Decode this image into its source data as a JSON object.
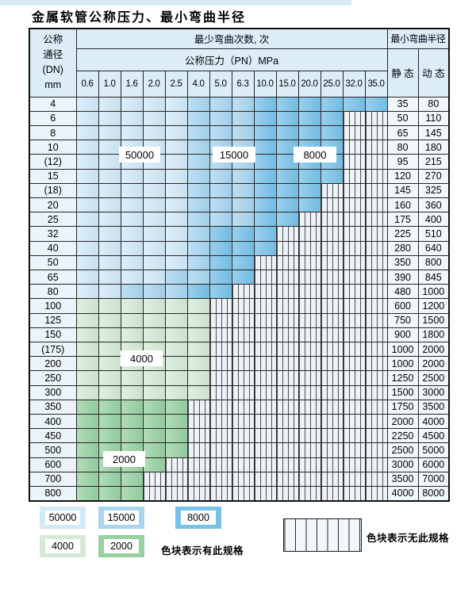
{
  "title": "金属软管公称压力、最小弯曲半径",
  "header": {
    "col1_lines": [
      "公称",
      "通径",
      "(DN)",
      "mm"
    ],
    "bend_cycles": "最少弯曲次数, 次",
    "pressure": "公称压力（PN）MPa",
    "min_radius": "最小弯曲半径",
    "static": "静 态",
    "dynamic": "动 态",
    "pressures": [
      "0.6",
      "1.0",
      "1.6",
      "2.0",
      "2.5",
      "4.0",
      "5.0",
      "6.3",
      "10.0",
      "15.0",
      "20.0",
      "25.0",
      "32.0",
      "35.0"
    ]
  },
  "zone_labels": [
    "50000",
    "15000",
    "8000",
    "4000",
    "2000"
  ],
  "colors": {
    "c50000": "#d2e9f7",
    "c15000": "#a9d5ef",
    "c8000": "#78c1e8",
    "c4000": "#d5ead5",
    "c2000": "#98d1a0",
    "header_bg": "#dcedf8",
    "dn_bg": "#ebf4fa",
    "sv_bg": "#f1f7fb",
    "topstrip": "#d9eaf5"
  },
  "rows": [
    {
      "dn": "4",
      "static": "35",
      "dynamic": "80",
      "extent": 14,
      "z1": 5,
      "z2": 8,
      "group": "blue"
    },
    {
      "dn": "6",
      "static": "50",
      "dynamic": "110",
      "extent": 12,
      "z1": 5,
      "z2": 8,
      "group": "blue"
    },
    {
      "dn": "8",
      "static": "65",
      "dynamic": "145",
      "extent": 12,
      "z1": 5,
      "z2": 8,
      "group": "blue"
    },
    {
      "dn": "10",
      "static": "80",
      "dynamic": "180",
      "extent": 12,
      "z1": 5,
      "z2": 8,
      "group": "blue"
    },
    {
      "dn": "(12)",
      "static": "95",
      "dynamic": "215",
      "extent": 12,
      "z1": 5,
      "z2": 8,
      "group": "blue"
    },
    {
      "dn": "15",
      "static": "120",
      "dynamic": "270",
      "extent": 12,
      "z1": 5,
      "z2": 8,
      "group": "blue"
    },
    {
      "dn": "(18)",
      "static": "145",
      "dynamic": "325",
      "extent": 11,
      "z1": 5,
      "z2": 8,
      "group": "blue"
    },
    {
      "dn": "20",
      "static": "160",
      "dynamic": "360",
      "extent": 11,
      "z1": 5,
      "z2": 8,
      "group": "blue"
    },
    {
      "dn": "25",
      "static": "175",
      "dynamic": "400",
      "extent": 10,
      "z1": 5,
      "z2": 8,
      "group": "blue"
    },
    {
      "dn": "32",
      "static": "225",
      "dynamic": "510",
      "extent": 9,
      "z1": 5,
      "z2": 6,
      "group": "blue"
    },
    {
      "dn": "40",
      "static": "280",
      "dynamic": "640",
      "extent": 9,
      "z1": 5,
      "z2": 6,
      "group": "blue"
    },
    {
      "dn": "50",
      "static": "350",
      "dynamic": "800",
      "extent": 8,
      "z1": 5,
      "z2": 6,
      "group": "blue"
    },
    {
      "dn": "65",
      "static": "390",
      "dynamic": "845",
      "extent": 8,
      "z1": 4,
      "z2": 6,
      "group": "blue"
    },
    {
      "dn": "80",
      "static": "480",
      "dynamic": "1000",
      "extent": 7,
      "z1": 2,
      "z2": 5,
      "group": "blue"
    },
    {
      "dn": "100",
      "static": "600",
      "dynamic": "1200",
      "extent": 6,
      "group": "green4000"
    },
    {
      "dn": "125",
      "static": "750",
      "dynamic": "1500",
      "extent": 6,
      "group": "green4000"
    },
    {
      "dn": "150",
      "static": "900",
      "dynamic": "1800",
      "extent": 6,
      "group": "green4000"
    },
    {
      "dn": "(175)",
      "static": "1000",
      "dynamic": "2000",
      "extent": 6,
      "group": "green4000"
    },
    {
      "dn": "200",
      "static": "1000",
      "dynamic": "2000",
      "extent": 6,
      "group": "green4000"
    },
    {
      "dn": "250",
      "static": "1250",
      "dynamic": "2500",
      "extent": 6,
      "group": "green4000"
    },
    {
      "dn": "300",
      "static": "1500",
      "dynamic": "3000",
      "extent": 6,
      "group": "green4000"
    },
    {
      "dn": "350",
      "static": "1750",
      "dynamic": "3500",
      "extent": 5,
      "group": "green2000"
    },
    {
      "dn": "400",
      "static": "2000",
      "dynamic": "4000",
      "extent": 5,
      "group": "green2000"
    },
    {
      "dn": "450",
      "static": "2250",
      "dynamic": "4500",
      "extent": 5,
      "group": "green2000"
    },
    {
      "dn": "500",
      "static": "2500",
      "dynamic": "5000",
      "extent": 5,
      "group": "green2000"
    },
    {
      "dn": "600",
      "static": "3000",
      "dynamic": "6000",
      "extent": 4,
      "group": "green2000"
    },
    {
      "dn": "700",
      "static": "3500",
      "dynamic": "7000",
      "extent": 3,
      "group": "green2000"
    },
    {
      "dn": "800",
      "static": "4000",
      "dynamic": "8000",
      "extent": 3,
      "group": "green2000"
    }
  ],
  "legend": {
    "items": [
      {
        "label": "50000",
        "color": "#d2e9f7"
      },
      {
        "label": "15000",
        "color": "#a9d5ef"
      },
      {
        "label": "8000",
        "color": "#78c1e8"
      },
      {
        "label": "4000",
        "color": "#d5ead5"
      },
      {
        "label": "2000",
        "color": "#98d1a0"
      }
    ],
    "has_spec_note": "色块表示有此规格",
    "no_spec_note": "色块表示无此规格"
  }
}
